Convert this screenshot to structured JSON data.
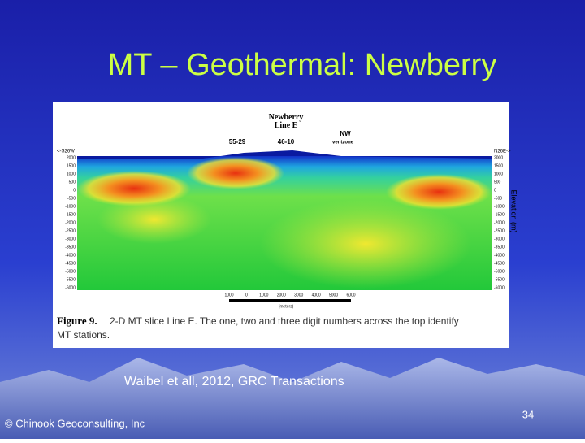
{
  "slide": {
    "title": "MT – Geothermal: Newberry",
    "citation": "Waibel et all, 2012, GRC Transactions",
    "footer": "© Chinook Geoconsulting, Inc",
    "page_number": "34"
  },
  "figure": {
    "heading": "Newberry\nLine E",
    "left_end": "<-S26W",
    "right_end": "N26E->",
    "axis_label": "Elevation (m)",
    "markers": [
      "55-29",
      "46-10",
      "NW",
      "ventzone"
    ],
    "elevation_ticks": [
      "2000",
      "1500",
      "1000",
      "500",
      "0",
      "-500",
      "-1000",
      "-1500",
      "-2000",
      "-2500",
      "-3000",
      "-3500",
      "-4000",
      "-4500",
      "-5000",
      "-5500",
      "-6000"
    ],
    "scale_ticks": [
      "1000",
      "0",
      "1000",
      "2000",
      "3000",
      "4000",
      "5000",
      "6000"
    ],
    "scale_unit": "(meters)",
    "caption_label": "Figure 9.",
    "caption_text": "2-D MT slice Line E. The one, two and three digit numbers across the top identify",
    "caption_text_2": "MT stations."
  }
}
